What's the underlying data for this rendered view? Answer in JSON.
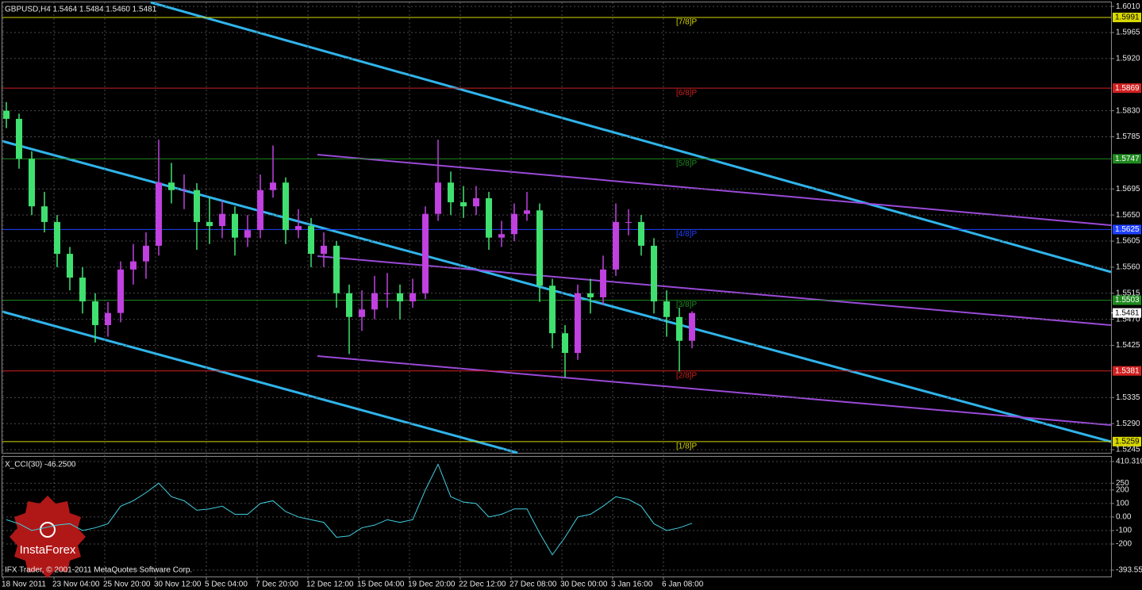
{
  "chart_data": [
    {
      "type": "candlestick",
      "title": "GBPUSD,H4  1.5464 1.5484 1.5460 1.5481",
      "categories": [
        "18 Nov 2011",
        null,
        null,
        null,
        "23 Nov 04:00",
        null,
        null,
        null,
        "25 Nov 20:00",
        null,
        null,
        null,
        "30 Nov 12:00",
        null,
        null,
        null,
        "5 Dec 04:00",
        null,
        null,
        null,
        "7 Dec 20:00",
        null,
        null,
        null,
        "12 Dec 12:00",
        null,
        null,
        null,
        "15 Dec 04:00",
        null,
        null,
        null,
        "19 Dec 20:00",
        null,
        null,
        null,
        "22 Dec 12:00",
        null,
        null,
        null,
        "27 Dec 08:00",
        null,
        null,
        null,
        "30 Dec 00:00",
        null,
        null,
        null,
        "3 Jan 16:00",
        null,
        null,
        null,
        "6 Jan 08:00",
        null,
        null
      ],
      "open": [
        1.583,
        1.5816,
        1.5747,
        1.5665,
        1.5638,
        1.5583,
        1.5542,
        1.5501,
        1.546,
        1.5481,
        1.5556,
        1.557,
        1.5597,
        1.5706,
        1.5693,
        1.5693,
        1.5638,
        1.5631,
        1.5652,
        1.5611,
        1.5624,
        1.5693,
        1.5706,
        1.5624,
        1.5631,
        1.5583,
        1.5597,
        1.5515,
        1.5474,
        1.5487,
        1.5515,
        1.5515,
        1.5501,
        1.5515,
        1.5652,
        1.5706,
        1.5672,
        1.5665,
        1.5679,
        1.5611,
        1.5617,
        1.5652,
        1.5658,
        1.5528,
        1.5446,
        1.5412,
        1.5515,
        1.5508,
        1.5556,
        1.5638,
        1.5638,
        1.5597,
        1.5501,
        1.5474,
        1.5433
      ],
      "high": [
        1.5845,
        1.5825,
        1.576,
        1.569,
        1.565,
        1.5595,
        1.556,
        1.5515,
        1.55,
        1.557,
        1.56,
        1.562,
        1.578,
        1.574,
        1.572,
        1.5705,
        1.568,
        1.5675,
        1.5665,
        1.565,
        1.572,
        1.577,
        1.5715,
        1.566,
        1.5645,
        1.562,
        1.5605,
        1.553,
        1.552,
        1.5545,
        1.555,
        1.553,
        1.554,
        1.5665,
        1.578,
        1.5725,
        1.57,
        1.57,
        1.569,
        1.564,
        1.567,
        1.569,
        1.567,
        1.554,
        1.546,
        1.553,
        1.554,
        1.558,
        1.567,
        1.566,
        1.565,
        1.561,
        1.552,
        1.549,
        1.5484
      ],
      "low": [
        1.58,
        1.573,
        1.565,
        1.562,
        1.556,
        1.552,
        1.548,
        1.543,
        1.544,
        1.5465,
        1.553,
        1.554,
        1.558,
        1.567,
        1.566,
        1.559,
        1.56,
        1.561,
        1.558,
        1.5595,
        1.561,
        1.568,
        1.56,
        1.561,
        1.556,
        1.556,
        1.549,
        1.541,
        1.545,
        1.547,
        1.549,
        1.547,
        1.549,
        1.5505,
        1.564,
        1.565,
        1.5645,
        1.565,
        1.559,
        1.5595,
        1.5605,
        1.564,
        1.55,
        1.542,
        1.537,
        1.54,
        1.548,
        1.5495,
        1.5545,
        1.5615,
        1.558,
        1.548,
        1.544,
        1.538,
        1.542
      ],
      "close": [
        1.5816,
        1.5747,
        1.5665,
        1.5638,
        1.5583,
        1.5542,
        1.5501,
        1.546,
        1.5481,
        1.5556,
        1.557,
        1.5597,
        1.5706,
        1.5693,
        1.5693,
        1.5638,
        1.5631,
        1.5652,
        1.5611,
        1.5624,
        1.5693,
        1.5706,
        1.5624,
        1.5631,
        1.5583,
        1.5597,
        1.5515,
        1.5474,
        1.5487,
        1.5515,
        1.5515,
        1.5501,
        1.5515,
        1.5652,
        1.5706,
        1.5672,
        1.5665,
        1.5679,
        1.5611,
        1.5617,
        1.5652,
        1.5658,
        1.5528,
        1.5446,
        1.5412,
        1.5515,
        1.5508,
        1.5556,
        1.5638,
        1.5638,
        1.5597,
        1.5501,
        1.5474,
        1.5433,
        1.5481
      ],
      "up_color": "#c040e0",
      "down_color": "#40e070",
      "ylim": [
        1.5241,
        1.6017
      ],
      "yticks": [
        {
          "value": 1.601,
          "label": "1.6010"
        },
        1.5965,
        {
          "value": 1.592,
          "label": "1.5920"
        },
        {
          "value": 1.583,
          "label": "1.5830"
        },
        1.5785,
        1.5695,
        {
          "value": 1.565,
          "label": "1.5650"
        },
        1.5605,
        {
          "value": 1.556,
          "label": "1.5560"
        },
        1.5515,
        {
          "value": 1.547,
          "label": "1.5470"
        },
        1.5425,
        1.5335,
        {
          "value": 1.529,
          "label": "1.5290"
        },
        1.5245
      ],
      "levels": [
        {
          "value": 1.5991,
          "label": "[7/8]P",
          "color": "#d8d800"
        },
        {
          "value": 1.5869,
          "label": "[6/8]P",
          "color": "#d02020"
        },
        {
          "value": 1.5747,
          "label": "[5/8]P",
          "color": "#1f8a1f"
        },
        {
          "value": 1.5625,
          "label": "[4/8]P",
          "color": "#2040ff"
        },
        {
          "value": 1.5503,
          "label": "[3/8]P",
          "color": "#1f8a1f"
        },
        {
          "value": 1.5381,
          "label": "[2/8]P",
          "color": "#d02020"
        },
        {
          "value": 1.5259,
          "label": "[1/8]P",
          "color": "#d8d800"
        }
      ],
      "grid": true
    },
    {
      "type": "line",
      "title": "X_CCI(30) -46.2500",
      "series": [
        {
          "name": "X_CCI(30)",
          "color": "#40d0e0",
          "values": [
            -20,
            -50,
            -100,
            -80,
            -60,
            -50,
            -100,
            -80,
            -50,
            80,
            120,
            180,
            250,
            150,
            120,
            50,
            60,
            80,
            20,
            20,
            100,
            120,
            40,
            0,
            -20,
            -40,
            -150,
            -140,
            -80,
            -60,
            -20,
            -40,
            -20,
            200,
            390,
            150,
            110,
            100,
            0,
            20,
            60,
            60,
            -120,
            -280,
            -150,
            0,
            20,
            80,
            150,
            130,
            80,
            -50,
            -100,
            -80,
            -46.25
          ]
        }
      ],
      "ylim": [
        -393.555,
        410.31
      ],
      "yticks": [
        {
          "value": 410.31,
          "label": "410.310"
        },
        250,
        200,
        100,
        {
          "value": 0,
          "label": "0.00"
        },
        -100,
        -200,
        -393.555
      ]
    }
  ],
  "footer": "IFX Trader, © 2001-2011 MetaQuotes Software Corp.",
  "logo": "InstaForex"
}
